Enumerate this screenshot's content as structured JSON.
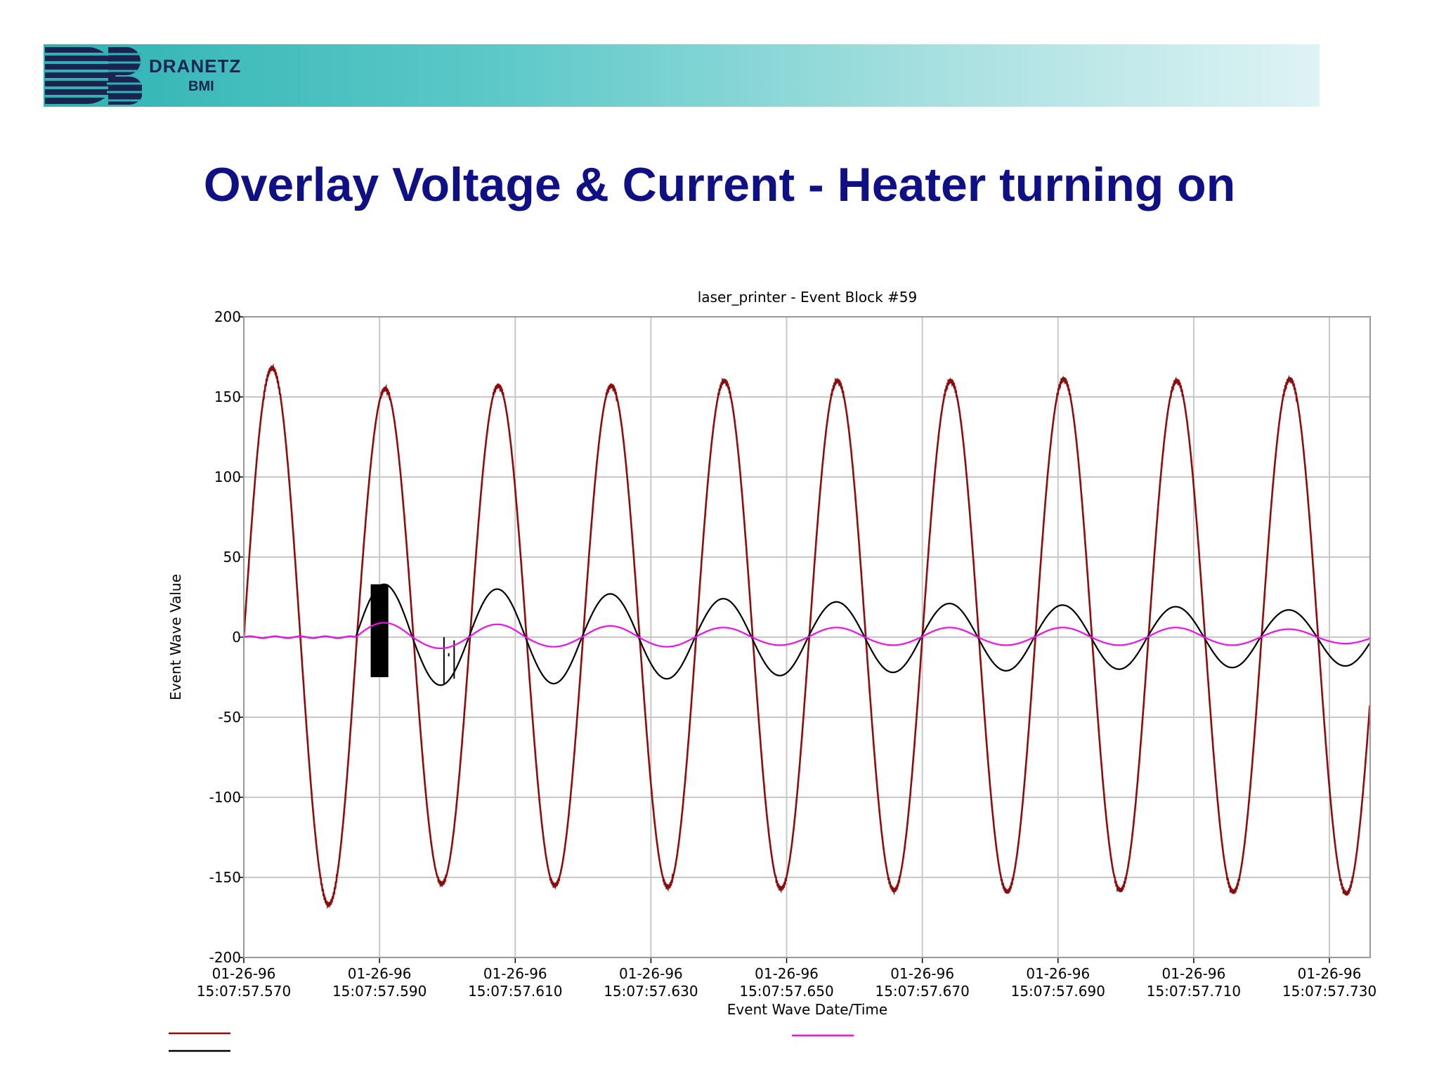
{
  "header": {
    "logo_name": "DRANETZ",
    "logo_sub": "BMI",
    "colors": {
      "banner_start": "#2eb3b3",
      "banner_end": "#dff3f5",
      "logo": "#1b2450"
    }
  },
  "slide": {
    "title": "Overlay Voltage & Current - Heater turning on",
    "title_color": "#0f0f86"
  },
  "chart_data": {
    "type": "line",
    "title": "laser_printer - Event Block #59",
    "xlabel": "Event Wave Date/Time",
    "ylabel": "Event Wave Value",
    "ylim": [
      -200,
      200
    ],
    "yticks": [
      200,
      150,
      100,
      50,
      0,
      -50,
      -100,
      -150,
      -200
    ],
    "x_unit": "ms after 15:07:57.570",
    "xlim": [
      0,
      166
    ],
    "xtick_labels": [
      {
        "date": "01-26-96",
        "time": "15:07:57.570"
      },
      {
        "date": "01-26-96",
        "time": "15:07:57.590"
      },
      {
        "date": "01-26-96",
        "time": "15:07:57.610"
      },
      {
        "date": "01-26-96",
        "time": "15:07:57.630"
      },
      {
        "date": "01-26-96",
        "time": "15:07:57.650"
      },
      {
        "date": "01-26-96",
        "time": "15:07:57.670"
      },
      {
        "date": "01-26-96",
        "time": "15:07:57.690"
      },
      {
        "date": "01-26-96",
        "time": "15:07:57.710"
      },
      {
        "date": "01-26-96",
        "time": "15:07:57.730"
      }
    ],
    "grid": true,
    "legend": "bottom",
    "series": [
      {
        "color": "#8b0d0d",
        "frequency_hz": 60,
        "peaks": [
          168,
          -167,
          155,
          -154,
          157,
          -155,
          157,
          -156,
          160,
          -157,
          160,
          -158,
          160,
          -159,
          161,
          -158,
          160,
          -159,
          161,
          -160
        ]
      },
      {
        "color": "#000000",
        "frequency_hz": 60,
        "onset_ms": 16.5,
        "peaks": [
          33,
          -30,
          30,
          -29,
          27,
          -26,
          24,
          -24,
          22,
          -22,
          21,
          -21,
          20,
          -20,
          19,
          -19,
          17,
          -18
        ],
        "note_burst_at_ms": 20
      },
      {
        "color": "#ee11ee",
        "frequency_hz": 60,
        "onset_ms": 16.5,
        "peaks": [
          9,
          -7,
          8,
          -6,
          7,
          -6,
          6,
          -5,
          6,
          -5,
          6,
          -5,
          6,
          -5,
          6,
          -5,
          5,
          -4
        ]
      }
    ]
  }
}
